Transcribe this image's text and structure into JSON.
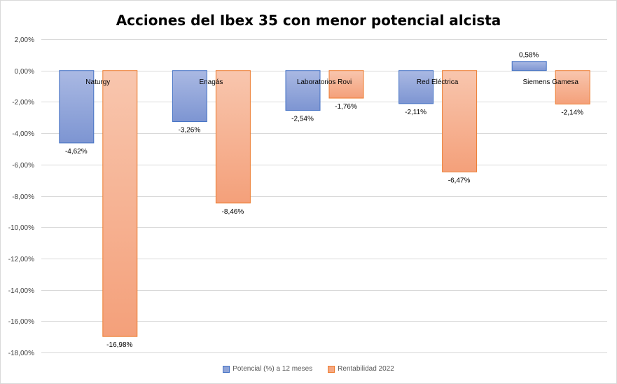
{
  "chart_data": {
    "type": "bar",
    "title": "Acciones del Ibex 35 con menor potencial alcista",
    "categories": [
      "Naturgy",
      "Enagás",
      "Laboratorios Rovi",
      "Red Eléctrica",
      "Siemens Gamesa"
    ],
    "series": [
      {
        "name": "Potencial (%) a 12 meses",
        "values": [
          -4.62,
          -3.26,
          -2.54,
          -2.11,
          0.58
        ],
        "labels": [
          "-4,62%",
          "-3,26%",
          "-2,54%",
          "-2,11%",
          "0,58%"
        ],
        "color": "#8FA4D8",
        "stroke": "#4472C4"
      },
      {
        "name": "Rentabilidad 2022",
        "values": [
          -16.98,
          -8.46,
          -1.76,
          -6.47,
          -2.14
        ],
        "labels": [
          "-16,98%",
          "-8,46%",
          "-1,76%",
          "-6,47%",
          "-2,14%"
        ],
        "color": "#F6A882",
        "stroke": "#ED7D31"
      }
    ],
    "ylim": [
      -18,
      2
    ],
    "yticks": [
      2,
      0,
      -2,
      -4,
      -6,
      -8,
      -10,
      -12,
      -14,
      -16,
      -18
    ],
    "ytick_labels": [
      "2,00%",
      "0,00%",
      "-2,00%",
      "-4,00%",
      "-6,00%",
      "-8,00%",
      "-10,00%",
      "-12,00%",
      "-14,00%",
      "-16,00%",
      "-18,00%"
    ],
    "grid": true,
    "legend_position": "bottom"
  }
}
